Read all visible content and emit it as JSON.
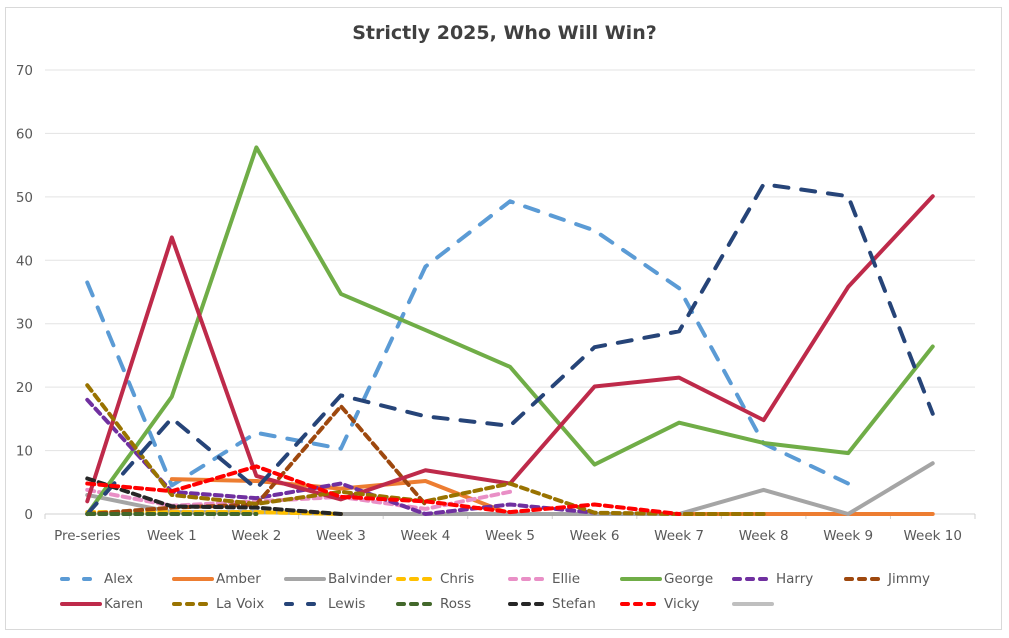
{
  "chart_data": {
    "type": "line",
    "title": "Strictly 2025, Who Will Win?",
    "xlabel": "",
    "ylabel": "",
    "ylim": [
      0,
      70
    ],
    "yticks": [
      "0",
      "10",
      "20",
      "30",
      "40",
      "50",
      "60",
      "70"
    ],
    "grid": true,
    "legend_position": "bottom",
    "categories": [
      "Pre-series",
      "Week 1",
      "Week 2",
      "Week 3",
      "Week 4",
      "Week 5",
      "Week 6",
      "Week 7",
      "Week 8",
      "Week 9",
      "Week 10"
    ],
    "series": [
      {
        "name": "Alex",
        "color": "#5b9bd5",
        "dash": "long",
        "values": [
          36.5,
          4.5,
          12.8,
          10.3,
          39,
          49.3,
          44.7,
          35.6,
          11.1,
          4.8,
          null
        ]
      },
      {
        "name": "Amber",
        "color": "#ed7d31",
        "dash": "solid",
        "values": [
          null,
          5.5,
          5.2,
          4,
          5.2,
          0,
          0,
          0,
          0,
          0,
          0
        ]
      },
      {
        "name": "Balvinder",
        "color": "#a5a5a5",
        "dash": "solid",
        "values": [
          3,
          0.3,
          0.3,
          0,
          0,
          0,
          0,
          0,
          3.8,
          0,
          8
        ]
      },
      {
        "name": "Chris",
        "color": "#ffc000",
        "dash": "short",
        "values": [
          0.3,
          0.3,
          0.3,
          0,
          null,
          null,
          null,
          null,
          null,
          null,
          null
        ]
      },
      {
        "name": "Ellie",
        "color": "#e98fc6",
        "dash": "short",
        "values": [
          3.8,
          1.3,
          2,
          2.7,
          0.8,
          3.5,
          null,
          null,
          null,
          null,
          null
        ]
      },
      {
        "name": "George",
        "color": "#70ad47",
        "dash": "solid",
        "values": [
          0,
          18.5,
          57.8,
          34.7,
          29,
          23.2,
          7.8,
          14.4,
          11.2,
          9.6,
          26.4
        ]
      },
      {
        "name": "Harry",
        "color": "#7030a0",
        "dash": "short",
        "values": [
          18,
          3.5,
          2.5,
          4.8,
          0,
          1.5,
          0.2,
          null,
          null,
          null,
          null
        ]
      },
      {
        "name": "Jimmy",
        "color": "#9e480e",
        "dash": "short",
        "values": [
          0,
          1,
          1.5,
          17,
          1.5,
          null,
          null,
          null,
          null,
          null,
          null
        ]
      },
      {
        "name": "Karen",
        "color": "#be2a4a",
        "dash": "solid",
        "values": [
          2,
          43.6,
          6,
          2.3,
          6.9,
          4.8,
          20.1,
          21.5,
          14.8,
          35.8,
          50.1
        ]
      },
      {
        "name": "La Voix",
        "color": "#997300",
        "dash": "short",
        "values": [
          20.3,
          3,
          1.6,
          3.5,
          2,
          4.8,
          0.2,
          0,
          0,
          null,
          null
        ]
      },
      {
        "name": "Lewis",
        "color": "#264478",
        "dash": "long",
        "values": [
          0,
          15.1,
          4,
          18.7,
          15.4,
          13.9,
          26.3,
          28.8,
          52,
          50.1,
          15.8
        ]
      },
      {
        "name": "Ross",
        "color": "#43682b",
        "dash": "short",
        "values": [
          0,
          0,
          0,
          null,
          null,
          null,
          null,
          null,
          null,
          null,
          null
        ]
      },
      {
        "name": "Stefan",
        "color": "#262626",
        "dash": "short",
        "values": [
          5.6,
          1.2,
          1,
          0,
          null,
          null,
          null,
          null,
          null,
          null,
          null
        ]
      },
      {
        "name": "Vicky",
        "color": "#ff0000",
        "dash": "short",
        "values": [
          4.8,
          3.6,
          7.5,
          2.7,
          2,
          0.3,
          1.5,
          0,
          null,
          null,
          null
        ]
      },
      {
        "name": "",
        "color": "#bfbfbf",
        "dash": "solid",
        "values": [
          null,
          null,
          null,
          null,
          null,
          null,
          null,
          null,
          null,
          null,
          null
        ]
      }
    ]
  }
}
